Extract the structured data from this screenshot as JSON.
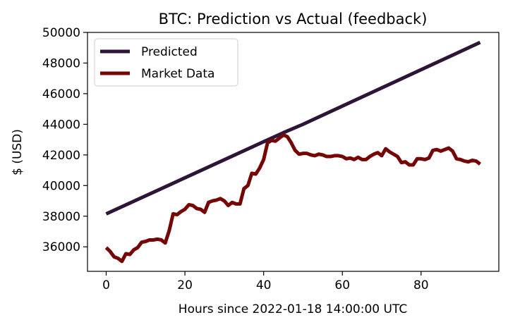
{
  "chart_data": {
    "type": "line",
    "title": "BTC: Prediction vs Actual (feedback)",
    "xlabel": "Hours since 2022-01-18 14:00:00 UTC",
    "ylabel": "$ (USD)",
    "xlim": [
      -4.75,
      99.75
    ],
    "ylim": [
      34400,
      50000
    ],
    "xticks": [
      0,
      20,
      40,
      60,
      80
    ],
    "yticks": [
      36000,
      38000,
      40000,
      42000,
      44000,
      46000,
      48000,
      50000
    ],
    "grid": false,
    "legend": "upper-left",
    "series": [
      {
        "name": "Predicted",
        "color": "#2e1537",
        "x": [
          0,
          45,
          50,
          95
        ],
        "y": [
          38150,
          43450,
          44000,
          49350
        ]
      },
      {
        "name": "Market Data",
        "color": "#750606",
        "x": [
          0,
          1,
          2,
          3,
          4,
          5,
          6,
          7,
          8,
          9,
          10,
          11,
          12,
          13,
          14,
          15,
          16,
          17,
          18,
          19,
          20,
          21,
          22,
          23,
          24,
          25,
          26,
          27,
          28,
          29,
          30,
          31,
          32,
          33,
          34,
          35,
          36,
          37,
          38,
          39,
          40,
          41,
          42,
          43,
          44,
          45,
          46,
          47,
          48,
          49,
          50,
          51,
          52,
          53,
          54,
          55,
          56,
          57,
          58,
          59,
          60,
          61,
          62,
          63,
          64,
          65,
          66,
          67,
          68,
          69,
          70,
          71,
          72,
          73,
          74,
          75,
          76,
          77,
          78,
          79,
          80,
          81,
          82,
          83,
          84,
          85,
          86,
          87,
          88,
          89,
          90,
          91,
          92,
          93,
          94,
          95
        ],
        "y": [
          35950,
          35700,
          35350,
          35250,
          35050,
          35550,
          35500,
          35800,
          35950,
          36300,
          36350,
          36450,
          36450,
          36500,
          36450,
          36250,
          37050,
          38150,
          38100,
          38300,
          38450,
          38750,
          38700,
          38500,
          38450,
          38250,
          38900,
          39000,
          39050,
          39150,
          39000,
          38700,
          38900,
          38800,
          38800,
          39800,
          40000,
          40800,
          40750,
          41150,
          41700,
          42800,
          42950,
          42900,
          43100,
          43300,
          43200,
          42800,
          42300,
          42050,
          42100,
          42100,
          42000,
          41950,
          42050,
          42000,
          41900,
          41900,
          41950,
          41950,
          41900,
          41750,
          41800,
          41700,
          41850,
          41700,
          41700,
          41900,
          42050,
          42150,
          41950,
          42400,
          42200,
          42050,
          41900,
          41500,
          41550,
          41350,
          41350,
          41750,
          41750,
          41700,
          41800,
          42300,
          42350,
          42250,
          42350,
          42450,
          42250,
          41750,
          41700,
          41600,
          41550,
          41650,
          41600,
          41400
        ]
      }
    ]
  }
}
